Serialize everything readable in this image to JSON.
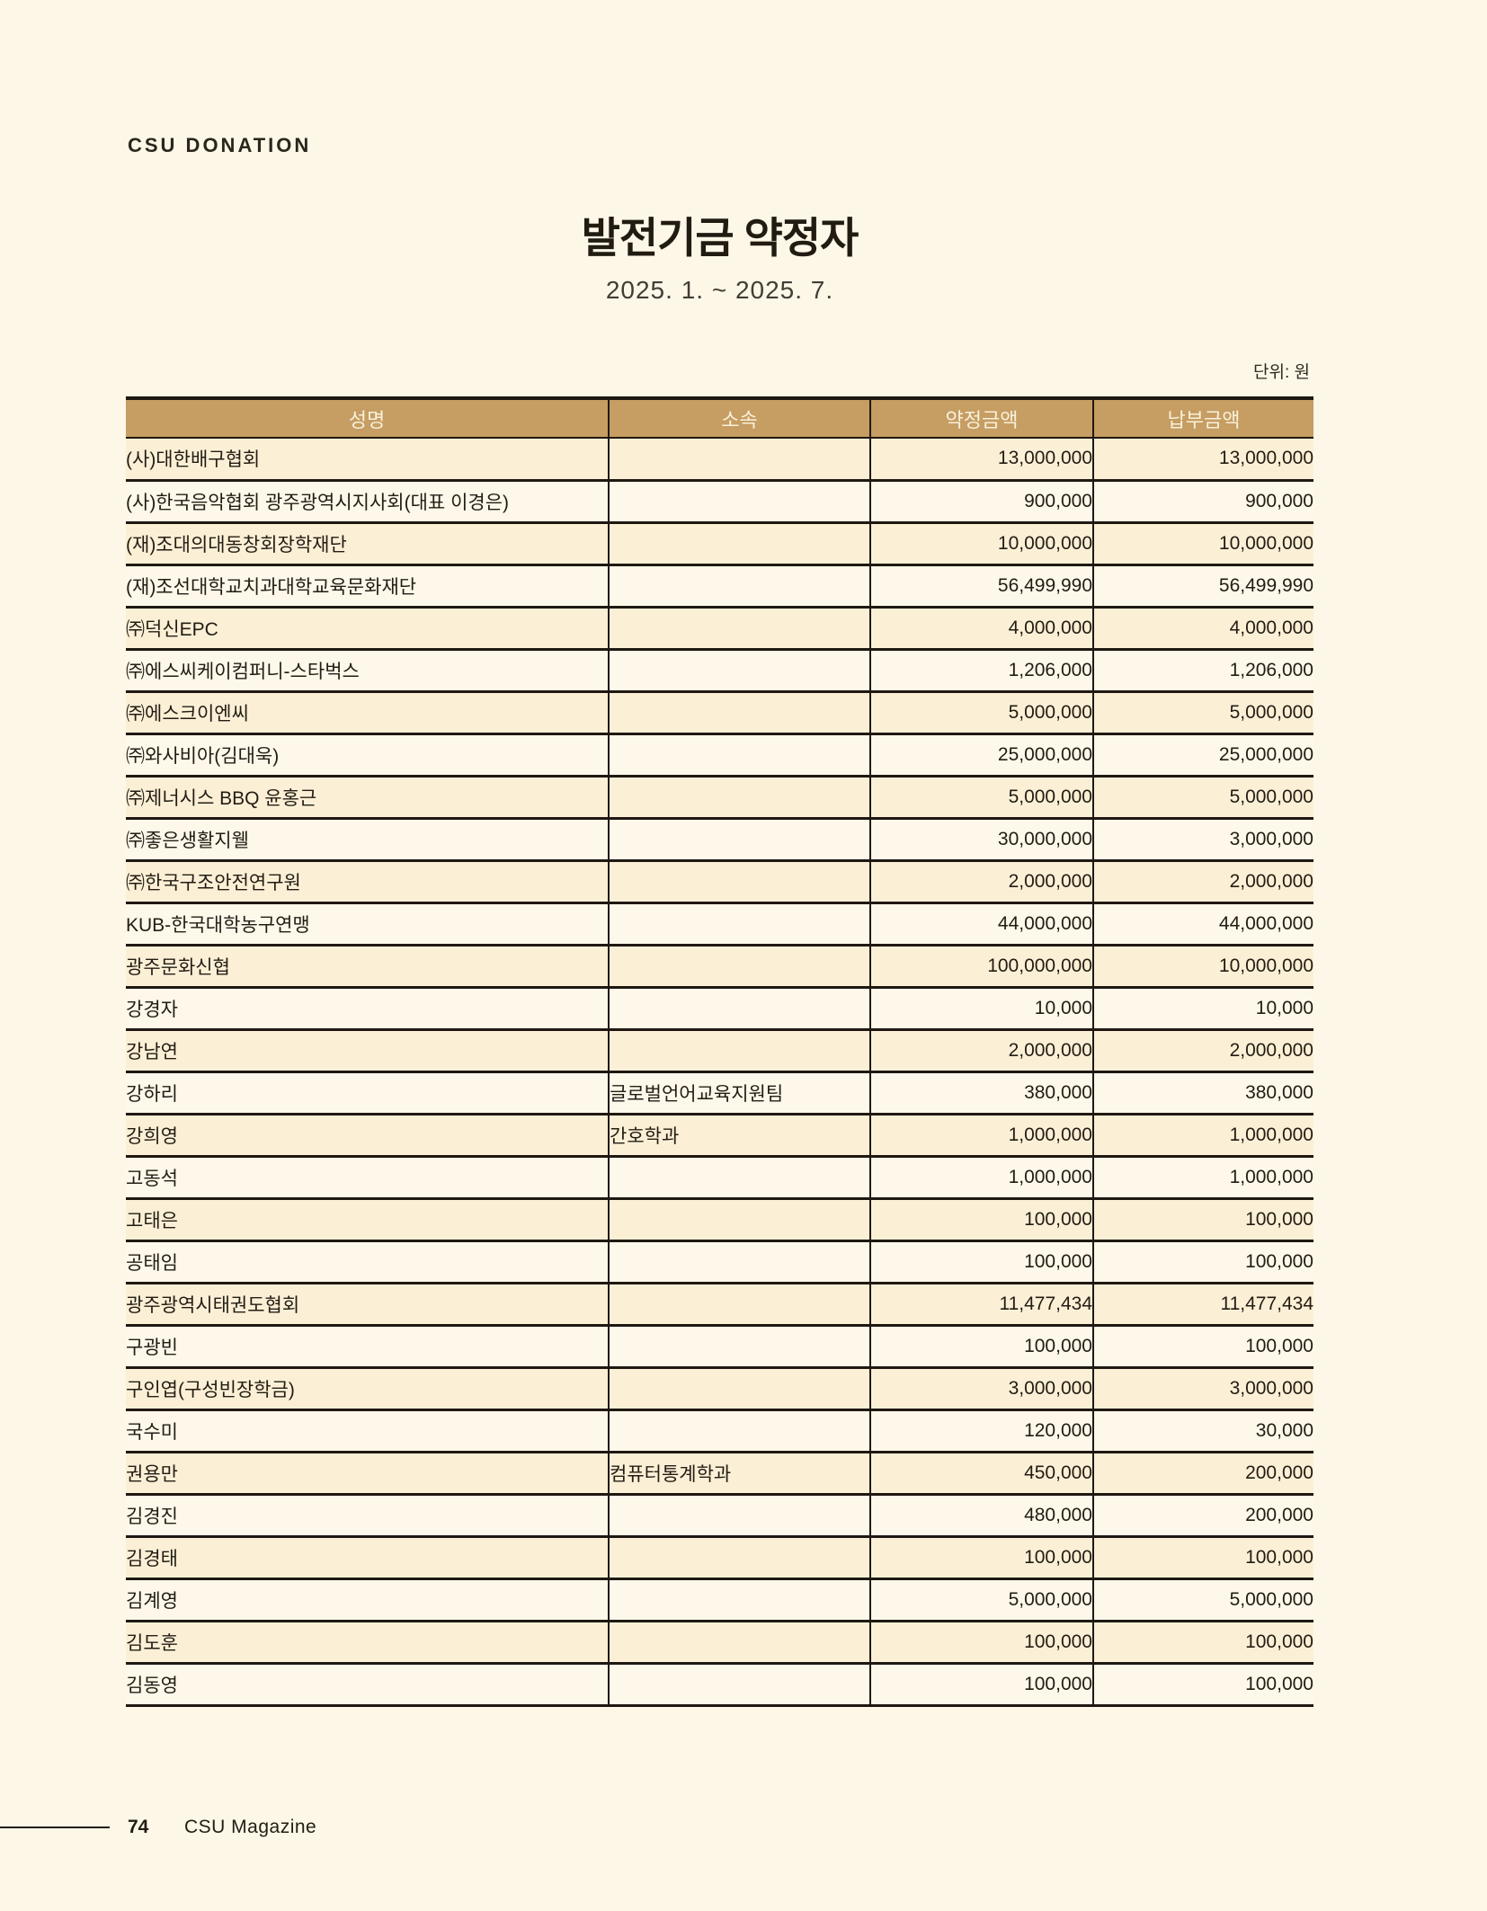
{
  "page": {
    "eyebrow": "CSU DONATION",
    "title": "발전기금 약정자",
    "period": "2025. 1. ~ 2025. 7.",
    "unit_note": "단위: 원",
    "footer": {
      "page_number": "74",
      "magazine": "CSU Magazine"
    }
  },
  "colors": {
    "page_background": "#FCF7E7",
    "header_fill": "#C69D62",
    "header_text": "#F8F1DC",
    "row_odd": "#FBF0D6",
    "row_even": "#FDF8EA",
    "border": "#1F1812",
    "text": "#231C13"
  },
  "table": {
    "columns": [
      "성명",
      "소속",
      "약정금액",
      "납부금액"
    ],
    "rows": [
      {
        "name": "(사)대한배구협회",
        "dept": "",
        "pledged": "13,000,000",
        "paid": "13,000,000"
      },
      {
        "name": "(사)한국음악협회 광주광역시지사회(대표 이경은)",
        "dept": "",
        "pledged": "900,000",
        "paid": "900,000"
      },
      {
        "name": "(재)조대의대동창회장학재단",
        "dept": "",
        "pledged": "10,000,000",
        "paid": "10,000,000"
      },
      {
        "name": "(재)조선대학교치과대학교육문화재단",
        "dept": "",
        "pledged": "56,499,990",
        "paid": "56,499,990"
      },
      {
        "name": "㈜덕신EPC",
        "dept": "",
        "pledged": "4,000,000",
        "paid": "4,000,000"
      },
      {
        "name": "㈜에스씨케이컴퍼니-스타벅스",
        "dept": "",
        "pledged": "1,206,000",
        "paid": "1,206,000"
      },
      {
        "name": "㈜에스크이엔씨",
        "dept": "",
        "pledged": "5,000,000",
        "paid": "5,000,000"
      },
      {
        "name": "㈜와사비아(김대욱)",
        "dept": "",
        "pledged": "25,000,000",
        "paid": "25,000,000"
      },
      {
        "name": "㈜제너시스 BBQ 윤홍근",
        "dept": "",
        "pledged": "5,000,000",
        "paid": "5,000,000"
      },
      {
        "name": "㈜좋은생활지웰",
        "dept": "",
        "pledged": "30,000,000",
        "paid": "3,000,000"
      },
      {
        "name": "㈜한국구조안전연구원",
        "dept": "",
        "pledged": "2,000,000",
        "paid": "2,000,000"
      },
      {
        "name": "KUB-한국대학농구연맹",
        "dept": "",
        "pledged": "44,000,000",
        "paid": "44,000,000"
      },
      {
        "name": "광주문화신협",
        "dept": "",
        "pledged": "100,000,000",
        "paid": "10,000,000"
      },
      {
        "name": "강경자",
        "dept": "",
        "pledged": "10,000",
        "paid": "10,000"
      },
      {
        "name": "강남연",
        "dept": "",
        "pledged": "2,000,000",
        "paid": "2,000,000"
      },
      {
        "name": "강하리",
        "dept": "글로벌언어교육지원팀",
        "pledged": "380,000",
        "paid": "380,000"
      },
      {
        "name": "강희영",
        "dept": "간호학과",
        "pledged": "1,000,000",
        "paid": "1,000,000"
      },
      {
        "name": "고동석",
        "dept": "",
        "pledged": "1,000,000",
        "paid": "1,000,000"
      },
      {
        "name": "고태은",
        "dept": "",
        "pledged": "100,000",
        "paid": "100,000"
      },
      {
        "name": "공태임",
        "dept": "",
        "pledged": "100,000",
        "paid": "100,000"
      },
      {
        "name": "광주광역시태권도협회",
        "dept": "",
        "pledged": "11,477,434",
        "paid": "11,477,434"
      },
      {
        "name": "구광빈",
        "dept": "",
        "pledged": "100,000",
        "paid": "100,000"
      },
      {
        "name": "구인엽(구성빈장학금)",
        "dept": "",
        "pledged": "3,000,000",
        "paid": "3,000,000"
      },
      {
        "name": "국수미",
        "dept": "",
        "pledged": "120,000",
        "paid": "30,000"
      },
      {
        "name": "권용만",
        "dept": "컴퓨터통계학과",
        "pledged": "450,000",
        "paid": "200,000"
      },
      {
        "name": "김경진",
        "dept": "",
        "pledged": "480,000",
        "paid": "200,000"
      },
      {
        "name": "김경태",
        "dept": "",
        "pledged": "100,000",
        "paid": "100,000"
      },
      {
        "name": "김계영",
        "dept": "",
        "pledged": "5,000,000",
        "paid": "5,000,000"
      },
      {
        "name": "김도훈",
        "dept": "",
        "pledged": "100,000",
        "paid": "100,000"
      },
      {
        "name": "김동영",
        "dept": "",
        "pledged": "100,000",
        "paid": "100,000"
      }
    ]
  }
}
